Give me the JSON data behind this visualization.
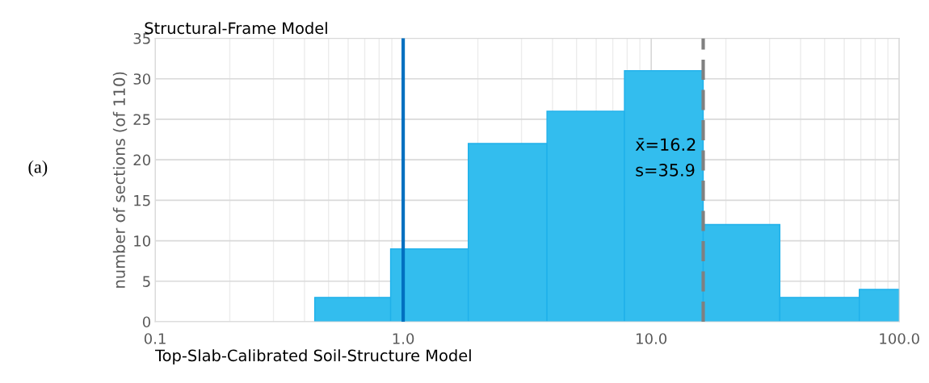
{
  "chart_data": {
    "type": "histogram",
    "title": "Structural-Frame Model",
    "xlabel": "Top-Slab-Calibrated Soil-Structure Model",
    "ylabel": "number of sections (of 110)",
    "bins": [
      0.44,
      0.89,
      1.83,
      3.8,
      7.8,
      16.2,
      33,
      69,
      100
    ],
    "values": [
      3,
      9,
      22,
      26,
      31,
      12,
      3,
      4
    ],
    "color": "#33bdee",
    "log": "x",
    "xlim": [
      0.1,
      100
    ],
    "xticks": [
      {
        "value": 0.1,
        "label": "0.1"
      },
      {
        "value": 1,
        "label": "1.0"
      },
      {
        "value": 10,
        "label": "10.0"
      },
      {
        "value": 100,
        "label": "100.0"
      }
    ],
    "ylim": [
      0,
      35
    ],
    "yticks": [
      0,
      5,
      10,
      15,
      20,
      25,
      30,
      35
    ],
    "grid": true,
    "ref_lines": [
      {
        "axis": "x",
        "value": 1.0,
        "color": "#0070c0",
        "line_style": "solid"
      },
      {
        "axis": "x",
        "value": 16.2,
        "color": "#808080",
        "line_style": "dashed"
      }
    ],
    "annotations": [
      "x̄=16.2",
      "s=35.9",
      "(a)"
    ]
  }
}
